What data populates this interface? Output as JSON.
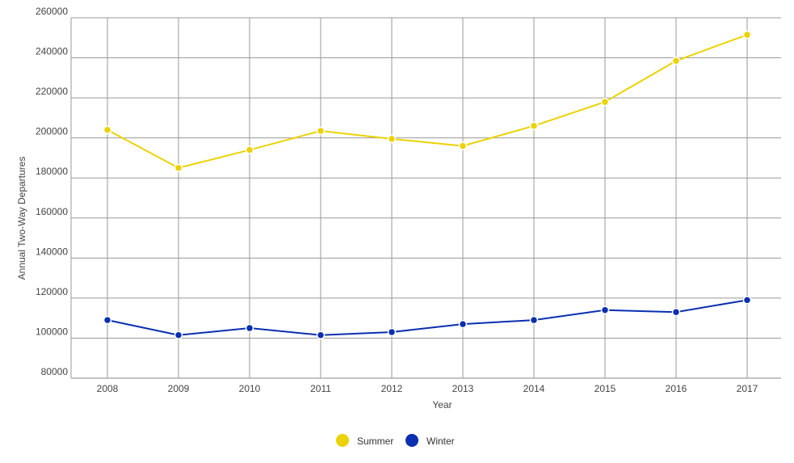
{
  "chart_data": {
    "type": "line",
    "title": "",
    "xlabel": "Year",
    "ylabel": "Annual Two-Way Departures",
    "categories": [
      "2008",
      "2009",
      "2010",
      "2011",
      "2012",
      "2013",
      "2014",
      "2015",
      "2016",
      "2017"
    ],
    "ylim": [
      80000,
      260000
    ],
    "yticks": [
      "80000",
      "100000",
      "120000",
      "140000",
      "160000",
      "180000",
      "200000",
      "220000",
      "240000",
      "260000"
    ],
    "grid": true,
    "legend_position": "bottom",
    "series": [
      {
        "name": "Summer",
        "color": "#ecd200",
        "values": [
          204000,
          185000,
          194000,
          203500,
          199500,
          196000,
          206000,
          218000,
          238500,
          251500
        ]
      },
      {
        "name": "Winter",
        "color": "#0a2fb0",
        "values": [
          109000,
          101500,
          105000,
          101500,
          103000,
          107000,
          109000,
          114000,
          113000,
          119000
        ]
      }
    ]
  }
}
